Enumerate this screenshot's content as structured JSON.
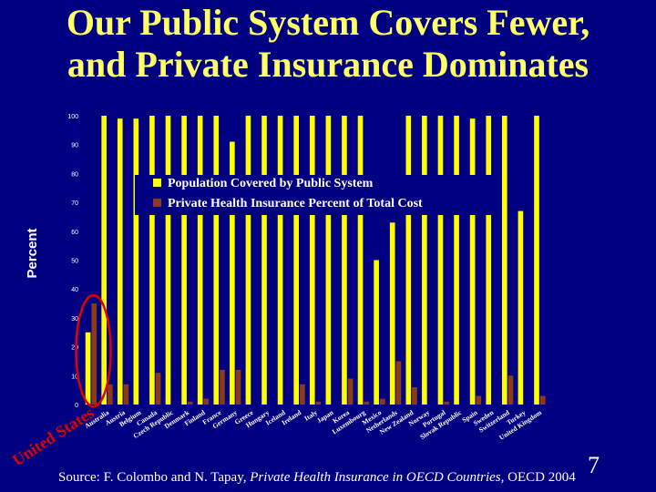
{
  "slide": {
    "title_line1": "Our Public System Covers Fewer,",
    "title_line2": "and Private Insurance Dominates",
    "source_prefix": "Source: F. Colombo and N. Tapay, ",
    "source_title": "Private Health Insurance in OECD Countries",
    "source_suffix": ", OECD 2004",
    "page_number": "7"
  },
  "colors": {
    "background": "#000080",
    "public": "#ffff00",
    "private": "#8b3a1a",
    "annotation": "#e00000",
    "axis_text": "#ffffff"
  },
  "chart_data": {
    "type": "bar",
    "ylabel": "Percent",
    "ylim": [
      0,
      100
    ],
    "yticks": [
      0,
      10,
      20,
      30,
      40,
      50,
      60,
      70,
      80,
      90,
      100
    ],
    "legend_position": "top-right",
    "categories": [
      "United States",
      "Australia",
      "Austria",
      "Belgium",
      "Canada",
      "Czech Republic",
      "Denmark",
      "Finland",
      "France",
      "Germany",
      "Greece",
      "Hungary",
      "Iceland",
      "Ireland",
      "Italy",
      "Japan",
      "Korea",
      "Luxembourg",
      "Mexico",
      "Netherlands",
      "New Zealand",
      "Norway",
      "Portugal",
      "Slovak Republic",
      "Spain",
      "Sweden",
      "Switzerland",
      "Turkey",
      "United Kingdom"
    ],
    "series": [
      {
        "name": "Population Covered by Public System",
        "values": [
          25,
          100,
          99,
          99,
          100,
          100,
          100,
          100,
          100,
          91,
          100,
          100,
          100,
          100,
          100,
          100,
          100,
          100,
          50,
          63,
          100,
          100,
          100,
          100,
          99,
          100,
          100,
          67,
          100
        ]
      },
      {
        "name": "Private Health Insurance Percent of Total Cost",
        "values": [
          35,
          7,
          7,
          0,
          11,
          0,
          1,
          2,
          12,
          12,
          0,
          0,
          0,
          7,
          1,
          0,
          9,
          1,
          2,
          15,
          6,
          0,
          1,
          0,
          3,
          0,
          10,
          0,
          3
        ]
      }
    ],
    "annotation": {
      "type": "ellipse",
      "target": "United States",
      "label": "United States"
    }
  }
}
